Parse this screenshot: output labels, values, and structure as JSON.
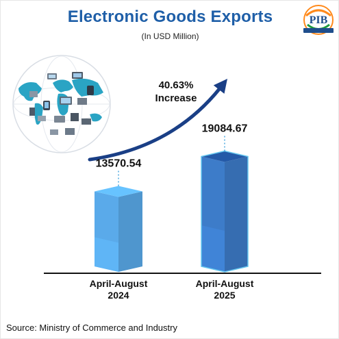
{
  "header": {
    "title": "Electronic Goods Exports",
    "subtitle": "(In USD Million)"
  },
  "logo": {
    "text": "PIB",
    "icon": "pib-logo-icon"
  },
  "decoration": {
    "icon": "globe-electronics-icon"
  },
  "annotation": {
    "line1": "40.63%",
    "line2": "Increase",
    "arrow_icon": "growth-arrow-icon"
  },
  "chart_data": {
    "type": "bar",
    "categories": [
      [
        "April-August",
        "2024"
      ],
      [
        "April-August",
        "2025"
      ]
    ],
    "values": [
      13570.54,
      19084.67
    ],
    "value_labels": [
      "13570.54",
      "19084.67"
    ],
    "ylim": [
      0,
      20000
    ],
    "grid": false,
    "legend": "none",
    "colors": {
      "bar_2024": "#5aaaea",
      "bar_2025": "#3d7cc9",
      "bar_2025_top": "#245aa8",
      "axis": "#111111",
      "arrow": "#1a3f86"
    }
  },
  "footer": {
    "source": "Source: Ministry of Commerce and Industry"
  }
}
